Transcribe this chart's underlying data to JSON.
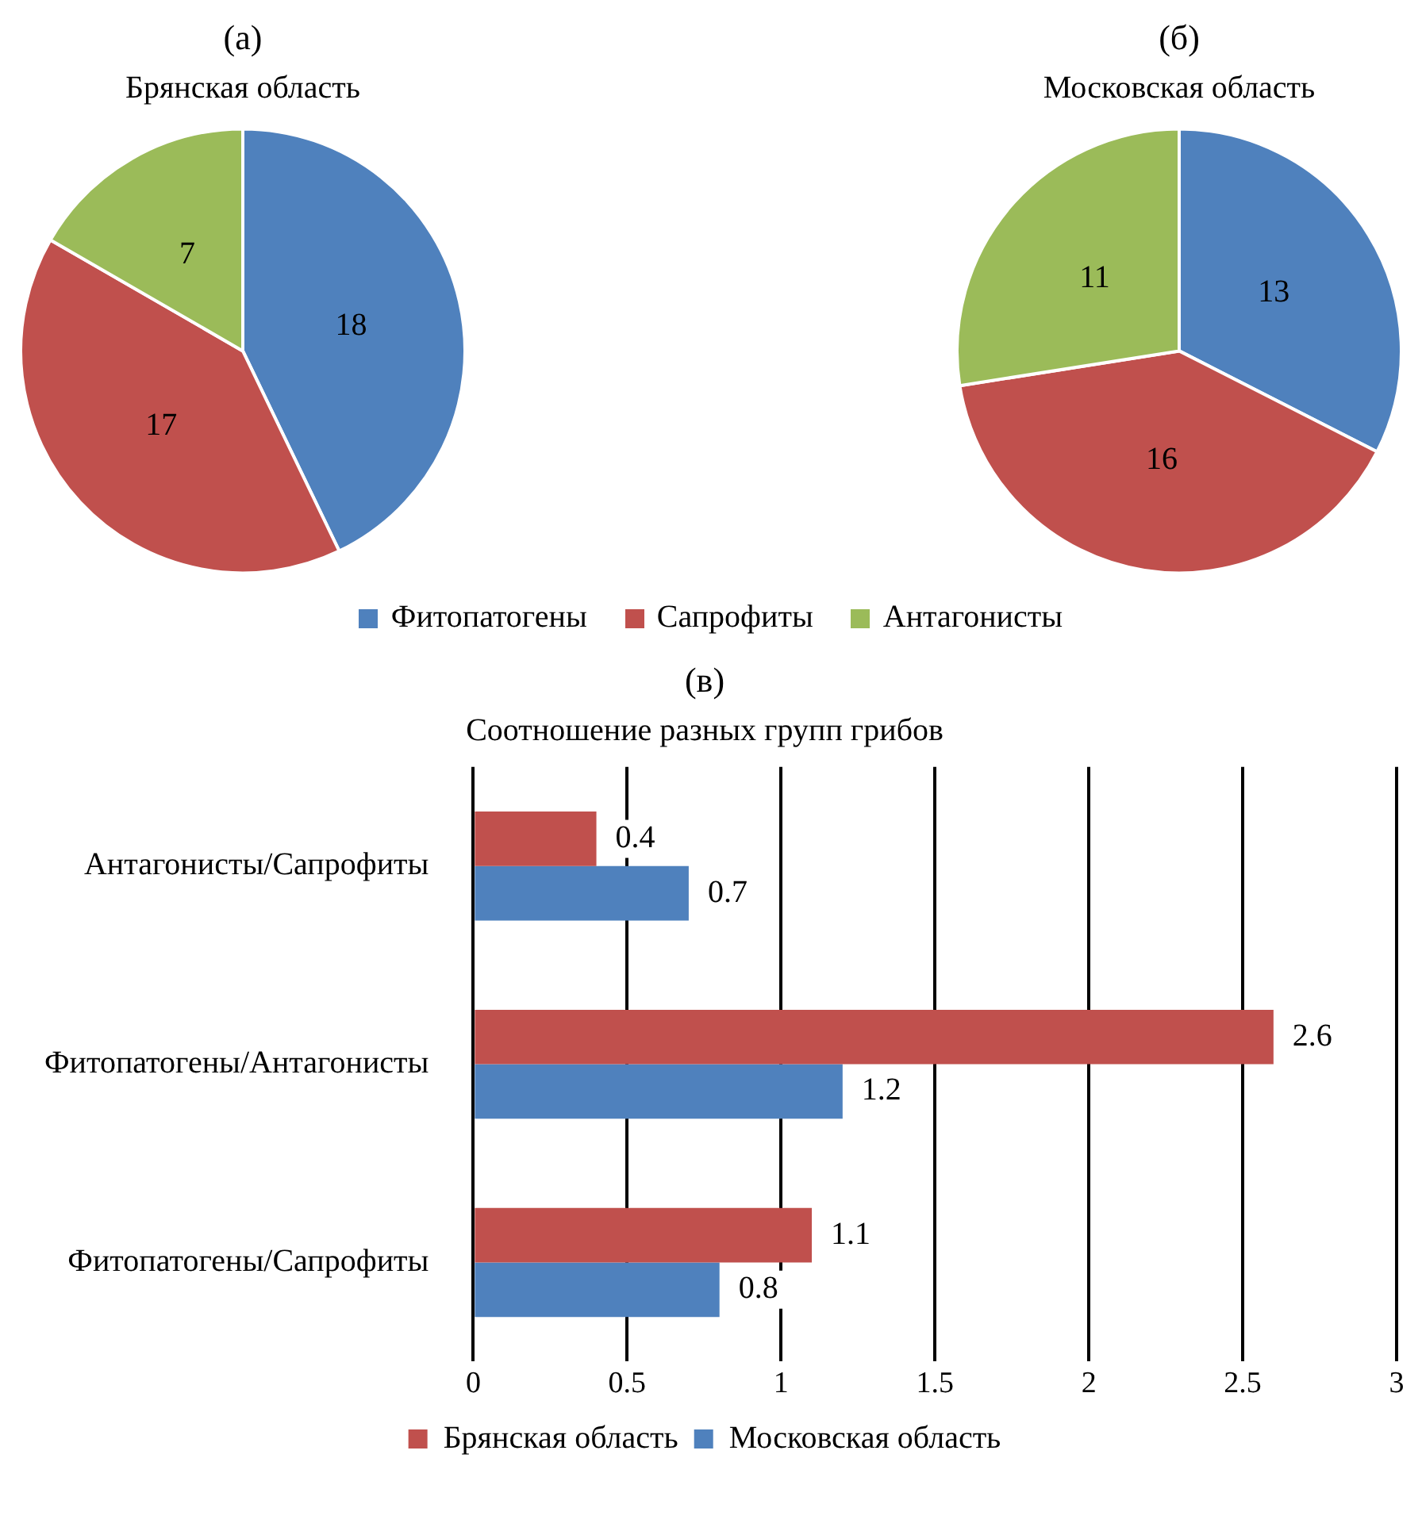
{
  "chart_data": [
    {
      "type": "pie",
      "title": "(а)",
      "subtitle": "Брянская область",
      "categories": [
        "Фитопатогены",
        "Сапрофиты",
        "Антагонисты"
      ],
      "values": [
        18,
        17,
        7
      ],
      "colors": [
        "#4f81bd",
        "#c0504d",
        "#9bbb59"
      ],
      "data_labels": true,
      "legend": "bottom"
    },
    {
      "type": "pie",
      "title": "(б)",
      "subtitle": "Московская область",
      "categories": [
        null,
        null,
        null
      ],
      "values": [
        13,
        16,
        11
      ],
      "colors": [
        "#4f81bd",
        "#c0504d",
        "#9bbb59"
      ],
      "data_labels": true
    },
    {
      "type": "bar",
      "orientation": "horizontal",
      "title": "(в)",
      "subtitle": "Соотношение разных групп грибов",
      "categories": [
        "Антагонисты/Сапрофиты",
        "Фитопатогены/Антагонисты",
        "Фитопатогены/Сапрофиты"
      ],
      "series": [
        {
          "name": "Брянская область",
          "color": "#c0504d",
          "values": [
            0.4,
            2.6,
            1.1
          ]
        },
        {
          "name": "Московская область",
          "color": "#4f81bd",
          "values": [
            0.7,
            1.2,
            0.8
          ]
        }
      ],
      "xlim": [
        0,
        3
      ],
      "xticks": [
        0,
        0.5,
        1,
        1.5,
        2,
        2.5,
        3
      ],
      "grid": "x",
      "data_labels": true,
      "legend": "bottom"
    }
  ]
}
